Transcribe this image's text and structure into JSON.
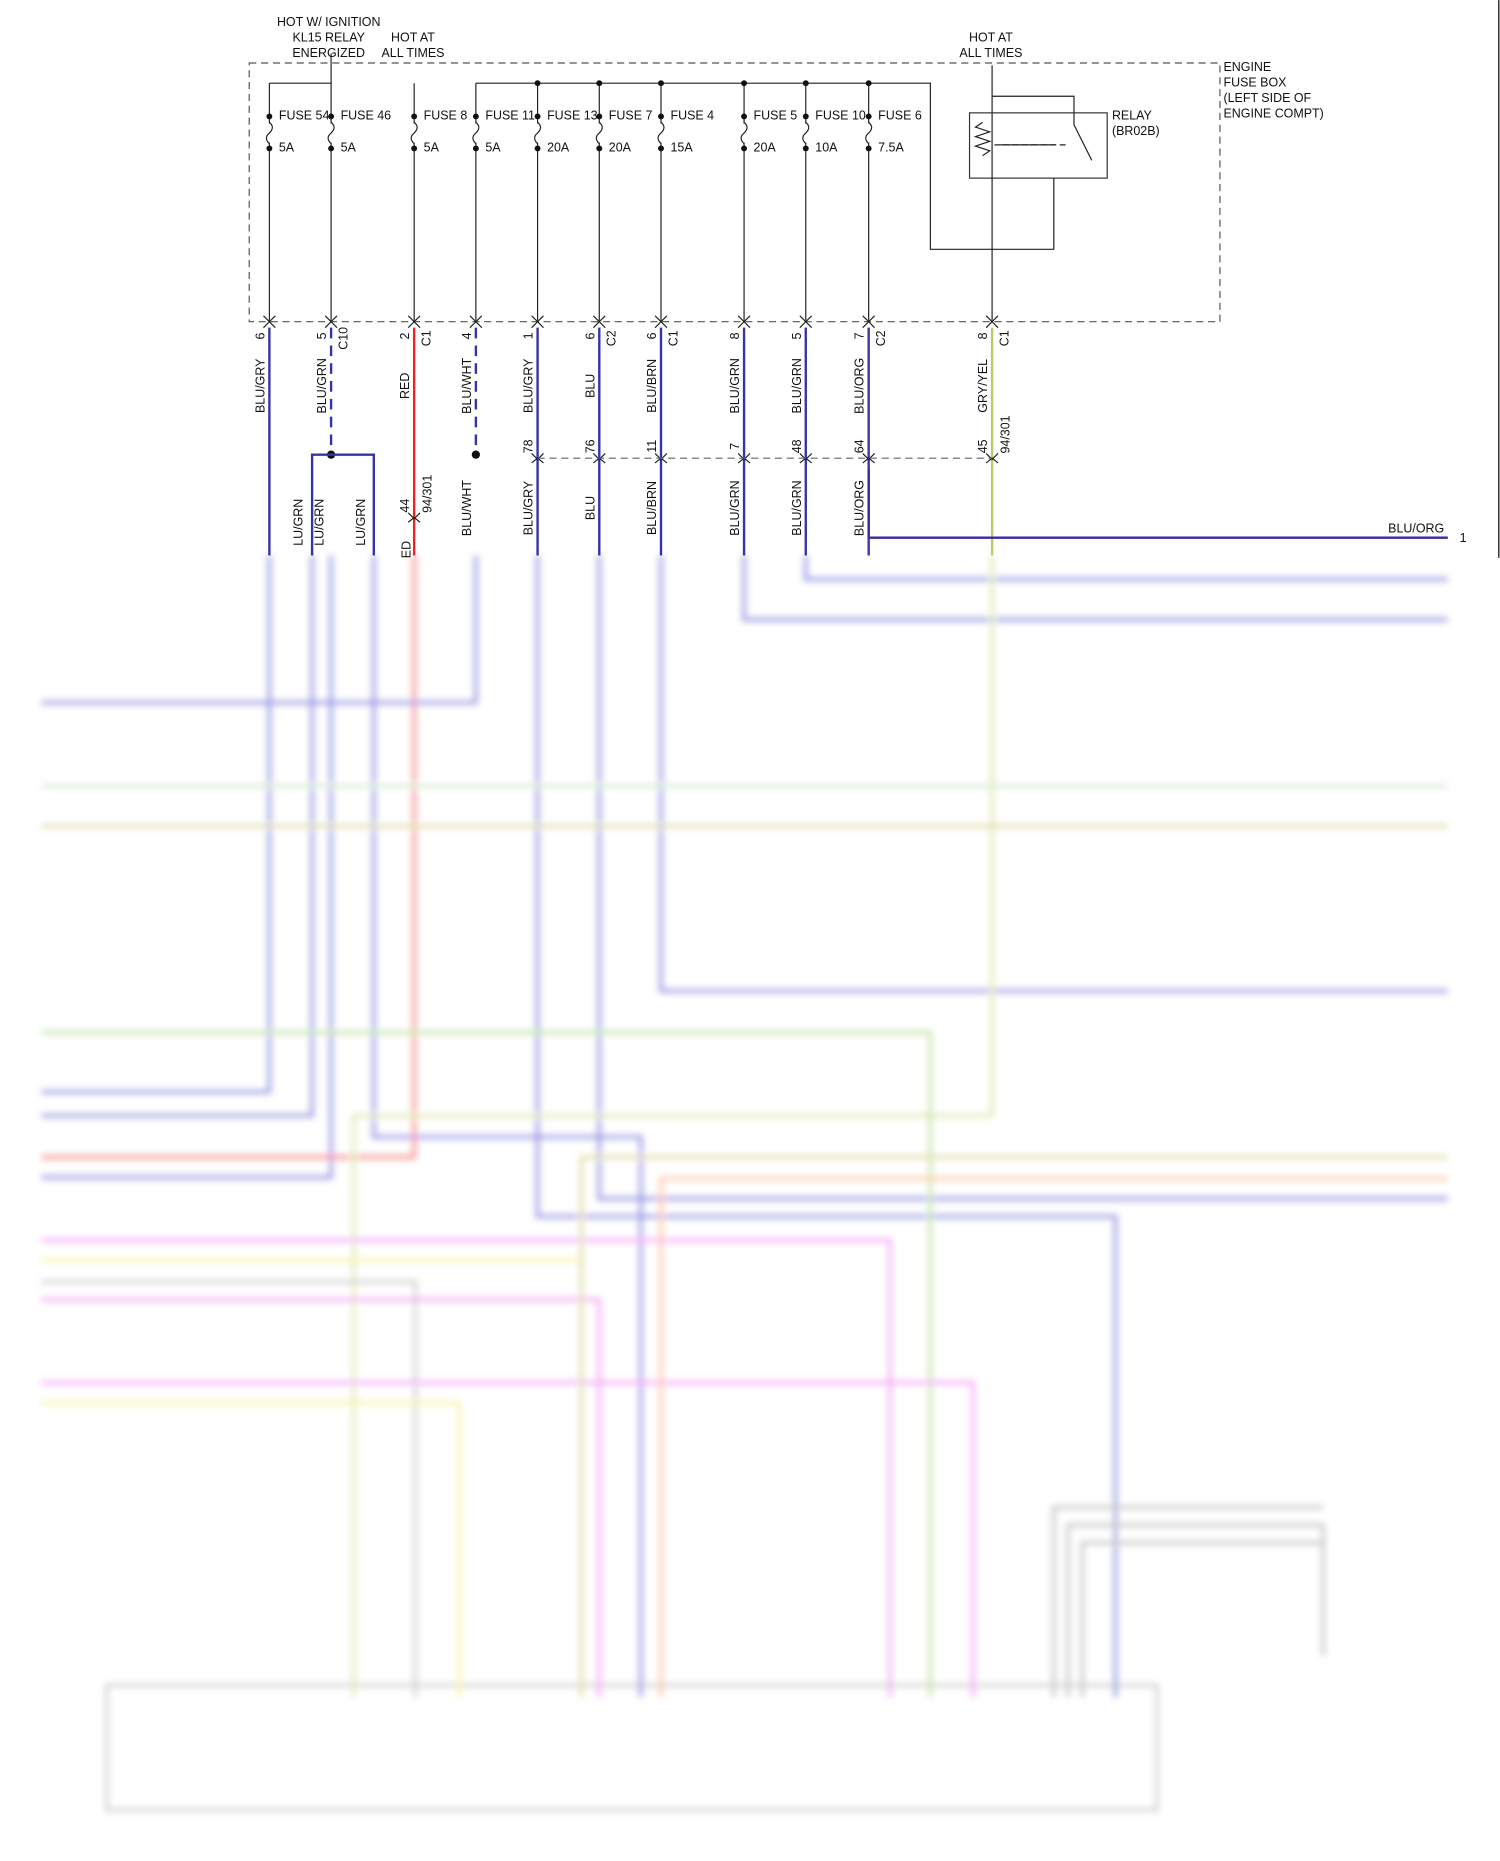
{
  "header": {
    "ignition_label": [
      "HOT W/ IGNITION",
      "KL15 RELAY",
      "ENERGIZED"
    ],
    "hot_label_left": [
      "HOT AT",
      "ALL TIMES"
    ],
    "hot_label_right": [
      "HOT AT",
      "ALL TIMES"
    ]
  },
  "fuse_box": {
    "label": [
      "ENGINE",
      "FUSE BOX",
      "(LEFT SIDE OF",
      "ENGINE COMPT)"
    ]
  },
  "relay": {
    "label": [
      "RELAY",
      "(BR02B)"
    ]
  },
  "columns": [
    {
      "fuse": "FUSE 54",
      "rating": "5A",
      "pin": "6",
      "wire": "BLU/GRY"
    },
    {
      "fuse": "FUSE 46",
      "rating": "5A",
      "pin": "5",
      "connector": "C10",
      "wire": "BLU/GRN"
    },
    {
      "fuse": "FUSE 8",
      "rating": "5A",
      "pin": "2",
      "connector": "C1",
      "wire": "RED",
      "splice_pin": "44",
      "splice": "94/301"
    },
    {
      "fuse": "FUSE 11",
      "rating": "5A",
      "pin": "4",
      "wire": "BLU/WHT",
      "lower_wire": "BLU/WHT"
    },
    {
      "fuse": "FUSE 13",
      "rating": "20A",
      "pin": "1",
      "wire": "BLU/GRY",
      "splice_pin": "78",
      "lower_wire": "BLU/GRY"
    },
    {
      "fuse": "FUSE 7",
      "rating": "20A",
      "pin": "6",
      "connector": "C2",
      "wire": "BLU",
      "splice_pin": "76",
      "lower_wire": "BLU"
    },
    {
      "fuse": "FUSE 4",
      "rating": "15A",
      "pin": "6",
      "connector": "C1",
      "wire": "BLU/BRN",
      "splice_pin": "11",
      "lower_wire": "BLU/BRN"
    },
    {
      "fuse": "FUSE 5",
      "rating": "20A",
      "pin": "8",
      "wire": "BLU/GRN",
      "splice_pin": "7",
      "lower_wire": "BLU/GRN"
    },
    {
      "fuse": "FUSE 10",
      "rating": "10A",
      "pin": "5",
      "wire": "BLU/GRN",
      "splice_pin": "48",
      "lower_wire": "BLU/GRN"
    },
    {
      "fuse": "FUSE 6",
      "rating": "7.5A",
      "pin": "7",
      "connector": "C2",
      "wire": "BLU/ORG",
      "splice_pin": "64",
      "lower_wire": "BLU/ORG"
    },
    {
      "pin": "8",
      "connector": "C1",
      "wire": "GRY/YEL",
      "splice_pin": "45",
      "splice": "94/301"
    }
  ],
  "branch_labels": [
    "LU/GRN",
    "LU/GRN",
    "LU/GRN",
    "ED"
  ],
  "output": {
    "wire": "BLU/ORG",
    "pin": "1"
  }
}
